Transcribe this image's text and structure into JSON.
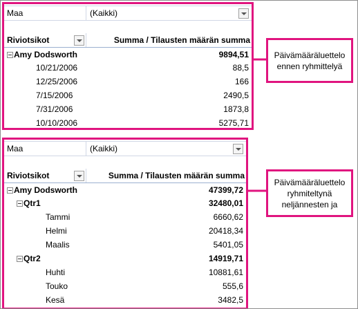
{
  "pivots": [
    {
      "filter": {
        "label": "Maa",
        "value": "(Kaikki)"
      },
      "header": {
        "rows": "Riviotsikot",
        "values": "Summa  / Tilausten määrän summa"
      },
      "rows": [
        {
          "label": "Amy Dodsworth",
          "value": "9894,51",
          "children": [
            {
              "label": "10/21/2006",
              "value": "88,5"
            },
            {
              "label": "12/25/2006",
              "value": "166"
            },
            {
              "label": "7/15/2006",
              "value": "2490,5"
            },
            {
              "label": "7/31/2006",
              "value": "1873,8"
            },
            {
              "label": "10/10/2006",
              "value": "5275,71"
            }
          ]
        }
      ]
    },
    {
      "filter": {
        "label": "Maa",
        "value": "(Kaikki)"
      },
      "header": {
        "rows": "Riviotsikot",
        "values": "Summa  / Tilausten määrän summa"
      },
      "rows": [
        {
          "label": "Amy Dodsworth",
          "value": "47399,72",
          "children": [
            {
              "label": "Qtr1",
              "value": "32480,01",
              "children": [
                {
                  "label": "Tammi",
                  "value": "6660,62"
                },
                {
                  "label": "Helmi",
                  "value": "20418,34"
                },
                {
                  "label": "Maalis",
                  "value": "5401,05"
                }
              ]
            },
            {
              "label": "Qtr2",
              "value": "14919,71",
              "children": [
                {
                  "label": "Huhti",
                  "value": "10881,61"
                },
                {
                  "label": "Touko",
                  "value": "555,6"
                },
                {
                  "label": "Kesä",
                  "value": "3482,5"
                }
              ]
            }
          ]
        }
      ]
    }
  ],
  "callouts": [
    "Päivämääräluettelo ennen ryhmittelyä",
    "Päivämääräluettelo ryhmiteltynä neljännesten ja"
  ]
}
